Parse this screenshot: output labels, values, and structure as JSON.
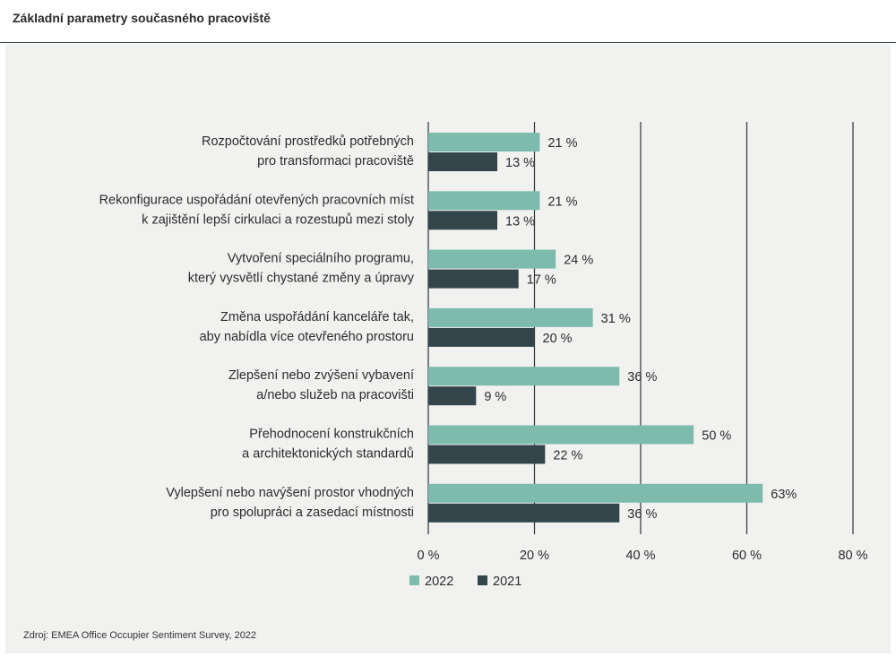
{
  "title": "Základní parametry současného pracoviště",
  "source": "Zdroj: EMEA Office Occupier Sentiment Survey, 2022",
  "colors": {
    "2022": "#7dbcad",
    "2021": "#33454a",
    "grid": "#2c3638",
    "panel": "#f1f1f0"
  },
  "chart_data": {
    "type": "bar",
    "orientation": "horizontal",
    "categories": [
      [
        "Rozpočtování prostředků potřebných",
        "pro transformaci pracoviště"
      ],
      [
        "Rekonfigurace uspořádání otevřených pracovních míst",
        "k zajištění lepší cirkulaci a rozestupů mezi stoly"
      ],
      [
        "Vytvoření speciálního programu,",
        "který vysvětlí chystané změny a úpravy"
      ],
      [
        "Změna uspořádání kanceláře tak,",
        "aby nabídla více otevřeného prostoru"
      ],
      [
        "Zlepšení nebo zvýšení vybavení",
        "a/nebo služeb na pracovišti"
      ],
      [
        "Přehodnocení konstrukčních",
        "a architektonických standardů"
      ],
      [
        "Vylepšení nebo navýšení prostor vhodných",
        "pro spolupráci a zasedací místnosti"
      ]
    ],
    "series": [
      {
        "name": "2022",
        "values": [
          21,
          21,
          24,
          31,
          36,
          50,
          63
        ],
        "labels": [
          "21 %",
          "21 %",
          "24 %",
          "31 %",
          "36 %",
          "50 %",
          "63%"
        ]
      },
      {
        "name": "2021",
        "values": [
          13,
          13,
          17,
          20,
          9,
          22,
          36
        ],
        "labels": [
          "13 %",
          "13 %",
          "17 %",
          "20 %",
          "9 %",
          "22 %",
          "36 %"
        ]
      }
    ],
    "xlim": [
      0,
      80
    ],
    "ticks": [
      0,
      20,
      40,
      60,
      80
    ],
    "tick_labels": [
      "0 %",
      "20 %",
      "40 %",
      "60 %",
      "80 %"
    ],
    "grid": true,
    "legend": [
      "2022",
      "2021"
    ],
    "legend_position": "bottom"
  }
}
